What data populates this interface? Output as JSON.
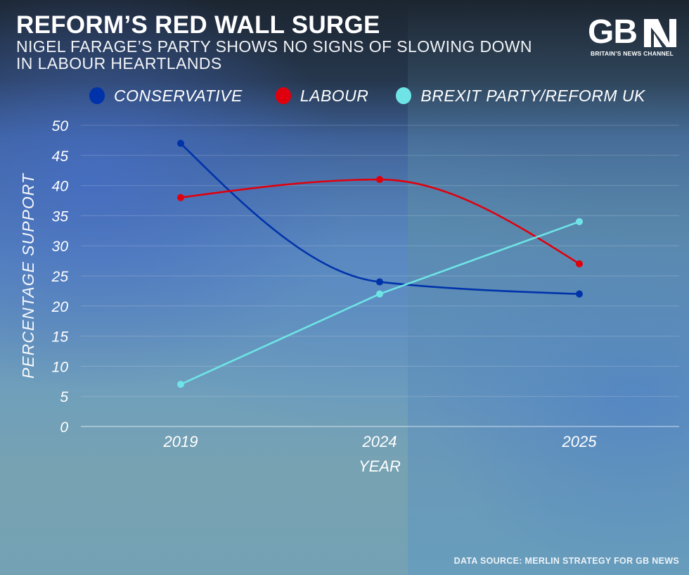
{
  "header": {
    "title": "REFORM’S RED WALL SURGE",
    "subtitle": "NIGEL FARAGE’S PARTY SHOWS NO SIGNS OF SLOWING DOWN IN LABOUR HEARTLANDS"
  },
  "logo": {
    "text": "GB",
    "tagline": "BRITAIN’S NEWS CHANNEL"
  },
  "footer": {
    "source": "DATA SOURCE: MERLIN STRATEGY FOR GB NEWS"
  },
  "colors": {
    "conservative": "#0033aa",
    "labour": "#e0000d",
    "reform": "#6ee4e6",
    "grid": "#ffffff"
  },
  "chart_data": {
    "type": "line",
    "title": "REFORM’S RED WALL SURGE",
    "subtitle": "NIGEL FARAGE’S PARTY SHOWS NO SIGNS OF SLOWING DOWN IN LABOUR HEARTLANDS",
    "xlabel": "YEAR",
    "ylabel": "PERCENTAGE SUPPORT",
    "x": [
      "2019",
      "2024",
      "2025"
    ],
    "yticks": [
      0,
      5,
      10,
      15,
      20,
      25,
      30,
      35,
      40,
      45,
      50
    ],
    "ylim": [
      0,
      50
    ],
    "grid": true,
    "legend_position": "top",
    "series": [
      {
        "name": "CONSERVATIVE",
        "color": "#0033aa",
        "smooth": true,
        "values": [
          47,
          24,
          22
        ]
      },
      {
        "name": "LABOUR",
        "color": "#e0000d",
        "smooth": true,
        "values": [
          38,
          41,
          27
        ]
      },
      {
        "name": "BREXIT PARTY/REFORM UK",
        "color": "#6ee4e6",
        "smooth": false,
        "values": [
          7,
          22,
          34
        ]
      }
    ]
  }
}
